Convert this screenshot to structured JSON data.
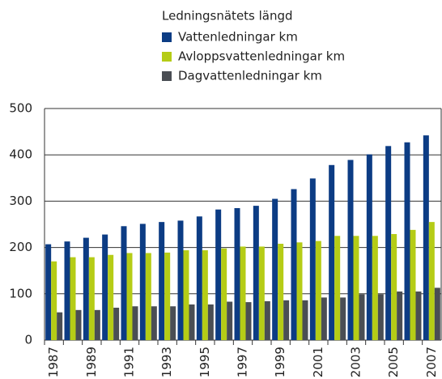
{
  "chart_data": {
    "type": "bar",
    "legend_title": "Ledningsnätets längd",
    "categories": [
      "1987",
      null,
      "1989",
      null,
      "1991",
      null,
      "1993",
      null,
      "1995",
      null,
      "1997",
      null,
      "1999",
      null,
      "2001",
      null,
      "2003",
      null,
      "2005",
      null,
      "2007"
    ],
    "series": [
      {
        "name": "Vattenledningar km",
        "color": "#0c3c84",
        "values": [
          207,
          213,
          221,
          228,
          246,
          251,
          255,
          258,
          267,
          282,
          285,
          290,
          305,
          326,
          349,
          378,
          389,
          401,
          419,
          427,
          442
        ]
      },
      {
        "name": "Avloppsvattenledningar km",
        "color": "#b5cc16",
        "values": [
          170,
          179,
          179,
          184,
          188,
          188,
          189,
          194,
          194,
          198,
          202,
          202,
          208,
          211,
          214,
          225,
          225,
          225,
          229,
          238,
          255
        ]
      },
      {
        "name": "Dagvattenledningar km",
        "color": "#4a4e54",
        "values": [
          60,
          65,
          65,
          70,
          73,
          73,
          73,
          77,
          77,
          83,
          82,
          84,
          86,
          86,
          92,
          92,
          99,
          99,
          105,
          105,
          113
        ]
      }
    ],
    "ylim": [
      0,
      500
    ],
    "yticks": [
      0,
      100,
      200,
      300,
      400,
      500
    ],
    "grid": true
  }
}
